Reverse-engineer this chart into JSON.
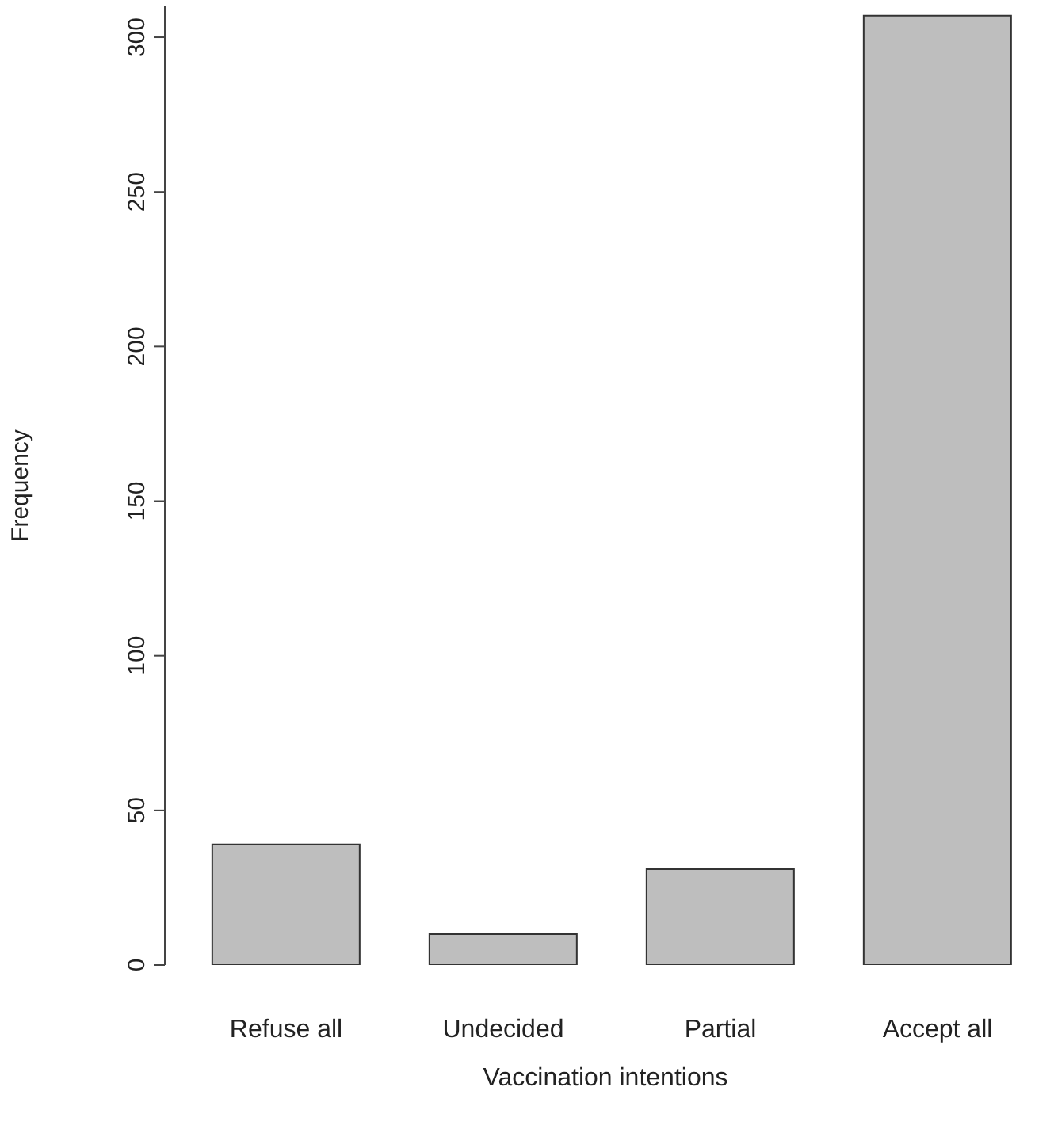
{
  "chart_data": {
    "type": "bar",
    "xlabel": "Vaccination intentions",
    "ylabel": "Frequency",
    "categories": [
      "Refuse all",
      "Undecided",
      "Partial",
      "Accept all"
    ],
    "values": [
      39,
      10,
      31,
      307
    ],
    "color": "#bebebe",
    "ylim": [
      0,
      310
    ],
    "yticks": [
      0,
      50,
      100,
      150,
      200,
      250,
      300
    ],
    "grid": false
  }
}
